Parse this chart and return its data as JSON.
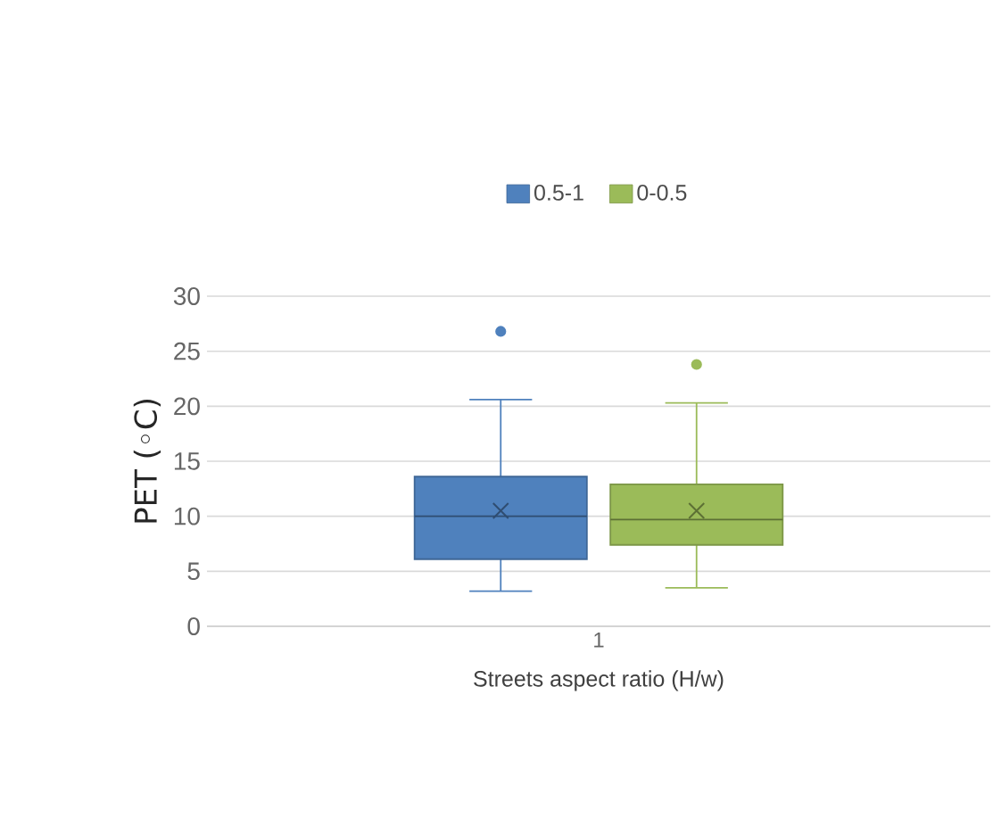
{
  "chart_data": {
    "type": "box",
    "categories": [
      "1"
    ],
    "xlabel": "Streets aspect ratio (H/w)",
    "ylabel": "PET (◦C)",
    "ylim": [
      0,
      30
    ],
    "yticks": [
      0,
      5,
      10,
      15,
      20,
      25,
      30
    ],
    "grid": "y",
    "legend": "top",
    "series": [
      {
        "name": "0.5-1",
        "color": "#4f81bd",
        "boxes": [
          {
            "low": 3.2,
            "q1": 6.1,
            "median": 10.0,
            "q3": 13.6,
            "high": 20.6,
            "mean": 10.5,
            "outliers": [
              26.8
            ]
          }
        ]
      },
      {
        "name": "0-0.5",
        "color": "#9bbb59",
        "boxes": [
          {
            "low": 3.5,
            "q1": 7.4,
            "median": 9.7,
            "q3": 12.9,
            "high": 20.3,
            "mean": 10.5,
            "outliers": [
              23.8
            ]
          }
        ]
      }
    ]
  }
}
